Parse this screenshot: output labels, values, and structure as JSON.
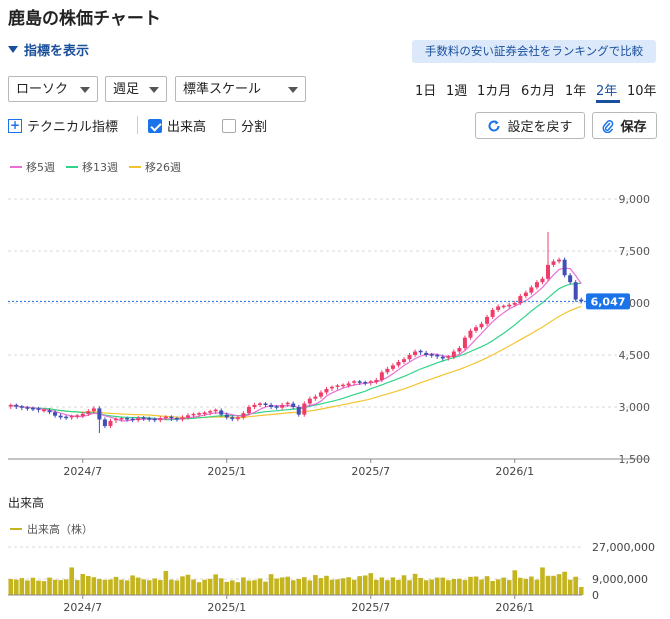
{
  "header": {
    "title": "鹿島の株価チャート",
    "toggle_label": "指標を表示",
    "promo": "手数料の安い証券会社をランキングで比較"
  },
  "controls": {
    "chart_type": "ローソク",
    "interval": "週足",
    "scale": "標準スケール",
    "periods": [
      "1日",
      "1週",
      "1カ月",
      "6カ月",
      "1年",
      "2年",
      "10年"
    ],
    "active_period": "2年",
    "technical_label": "テクニカル指標",
    "volume_label": "出来高",
    "volume_checked": true,
    "split_label": "分割",
    "split_checked": false,
    "reset_label": "設定を戻す",
    "save_label": "保存"
  },
  "colors": {
    "up": "#f03c6b",
    "down": "#3f4fb3",
    "ma5": "#e86fd8",
    "ma13": "#2fd48a",
    "ma26": "#f4c430",
    "volume": "#c4b41e",
    "accent": "#1a73e8",
    "last_price_bg": "#1a73e8"
  },
  "icons": {
    "toggle": "triangle-down-icon",
    "technical": "plus-box-icon",
    "reset": "refresh-icon",
    "save": "paperclip-icon"
  },
  "chart_data": {
    "type": "candlestick",
    "legend": [
      "移5週",
      "移13週",
      "移26週"
    ],
    "last_price_label": "6,047",
    "last_price": 6047,
    "y_ticks": [
      "9,000",
      "7,500",
      "6,000",
      "4,500",
      "3,000",
      "1,500"
    ],
    "ylim": [
      1500,
      9000
    ],
    "x_ticks": [
      "2024/7",
      "2025/1",
      "2025/7",
      "2026/1"
    ],
    "x_tick_index": [
      13,
      39,
      65,
      91
    ],
    "weeks": 104,
    "close": [
      3040,
      3000,
      2970,
      2950,
      2940,
      2900,
      2900,
      2850,
      2750,
      2700,
      2690,
      2720,
      2740,
      2800,
      2880,
      2960,
      2640,
      2450,
      2600,
      2640,
      2660,
      2640,
      2620,
      2680,
      2660,
      2640,
      2620,
      2680,
      2700,
      2660,
      2640,
      2700,
      2760,
      2780,
      2800,
      2820,
      2860,
      2900,
      2780,
      2700,
      2650,
      2700,
      2820,
      3000,
      3060,
      3080,
      3060,
      3000,
      2980,
      3060,
      3100,
      3000,
      2780,
      3100,
      3240,
      3300,
      3420,
      3520,
      3560,
      3600,
      3620,
      3680,
      3720,
      3700,
      3680,
      3720,
      3780,
      4000,
      4100,
      4200,
      4300,
      4380,
      4500,
      4600,
      4560,
      4500,
      4480,
      4450,
      4400,
      4440,
      4600,
      4700,
      5000,
      5200,
      5300,
      5400,
      5600,
      5800,
      5900,
      5900,
      5950,
      6000,
      6200,
      6300,
      6450,
      6600,
      6700,
      7100,
      7200,
      7250,
      6800,
      6600,
      6100,
      6047
    ],
    "volume_title": "出来高",
    "volume_legend": "出来高（株）",
    "volume_ticks": [
      "27,000,000",
      "9,000,000",
      "0"
    ],
    "volume_ylim": [
      0,
      27000000
    ],
    "volume": [
      9000000,
      8600000,
      9500000,
      8200000,
      9700000,
      8100000,
      7800000,
      9800000,
      8600000,
      8400000,
      8800000,
      15500000,
      8400000,
      11800000,
      10700000,
      10000000,
      9000000,
      8500000,
      8700000,
      10200000,
      8600000,
      8200000,
      11000000,
      9800000,
      8800000,
      8300000,
      9300000,
      8400000,
      13500000,
      8600000,
      8200000,
      10500000,
      11400000,
      8700000,
      7200000,
      8600000,
      9100000,
      11600000,
      9400000,
      7400000,
      8200000,
      7200000,
      9900000,
      8100000,
      8300000,
      9300000,
      7500000,
      11700000,
      9300000,
      9900000,
      10300000,
      8300000,
      9000000,
      10000000,
      8200000,
      11200000,
      9500000,
      10800000,
      8600000,
      8800000,
      9400000,
      10000000,
      8600000,
      10600000,
      11000000,
      12300000,
      8500000,
      9900000,
      8300000,
      9900000,
      8500000,
      11100000,
      8300000,
      11900000,
      9600000,
      8300000,
      8700000,
      9800000,
      9800000,
      8300000,
      9000000,
      9100000,
      8400000,
      10200000,
      10400000,
      8700000,
      10600000,
      7900000,
      8800000,
      9800000,
      8400000,
      13900000,
      9700000,
      9100000,
      10400000,
      8600000,
      15500000,
      10800000,
      10800000,
      11700000,
      13100000,
      8600000,
      10300000,
      4500000
    ]
  }
}
